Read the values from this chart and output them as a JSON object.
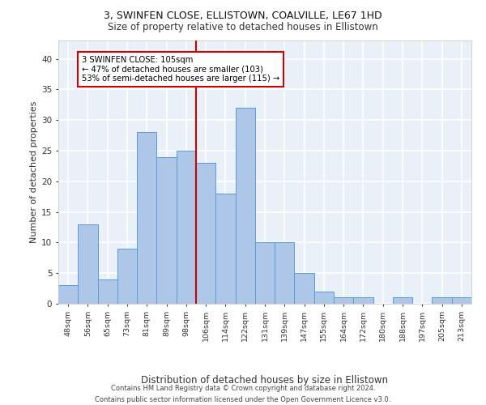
{
  "title1": "3, SWINFEN CLOSE, ELLISTOWN, COALVILLE, LE67 1HD",
  "title2": "Size of property relative to detached houses in Ellistown",
  "xlabel": "Distribution of detached houses by size in Ellistown",
  "ylabel": "Number of detached properties",
  "categories": [
    "48sqm",
    "56sqm",
    "65sqm",
    "73sqm",
    "81sqm",
    "89sqm",
    "98sqm",
    "106sqm",
    "114sqm",
    "122sqm",
    "131sqm",
    "139sqm",
    "147sqm",
    "155sqm",
    "164sqm",
    "172sqm",
    "180sqm",
    "188sqm",
    "197sqm",
    "205sqm",
    "213sqm"
  ],
  "values": [
    3,
    13,
    4,
    9,
    28,
    24,
    25,
    23,
    18,
    32,
    10,
    10,
    5,
    2,
    1,
    1,
    0,
    1,
    0,
    1,
    1
  ],
  "bar_color": "#aec6e8",
  "bar_edge_color": "#5b9bd5",
  "background_color": "#eaf0f8",
  "grid_color": "#ffffff",
  "vline_color": "#cc0000",
  "annotation_text": "3 SWINFEN CLOSE: 105sqm\n← 47% of detached houses are smaller (103)\n53% of semi-detached houses are larger (115) →",
  "annotation_box_color": "#cc0000",
  "footer_text": "Contains HM Land Registry data © Crown copyright and database right 2024.\nContains public sector information licensed under the Open Government Licence v3.0.",
  "ylim": [
    0,
    43
  ],
  "yticks": [
    0,
    5,
    10,
    15,
    20,
    25,
    30,
    35,
    40
  ],
  "title1_fontsize": 9,
  "title2_fontsize": 8.5,
  "ylabel_fontsize": 8,
  "xlabel_fontsize": 8.5
}
